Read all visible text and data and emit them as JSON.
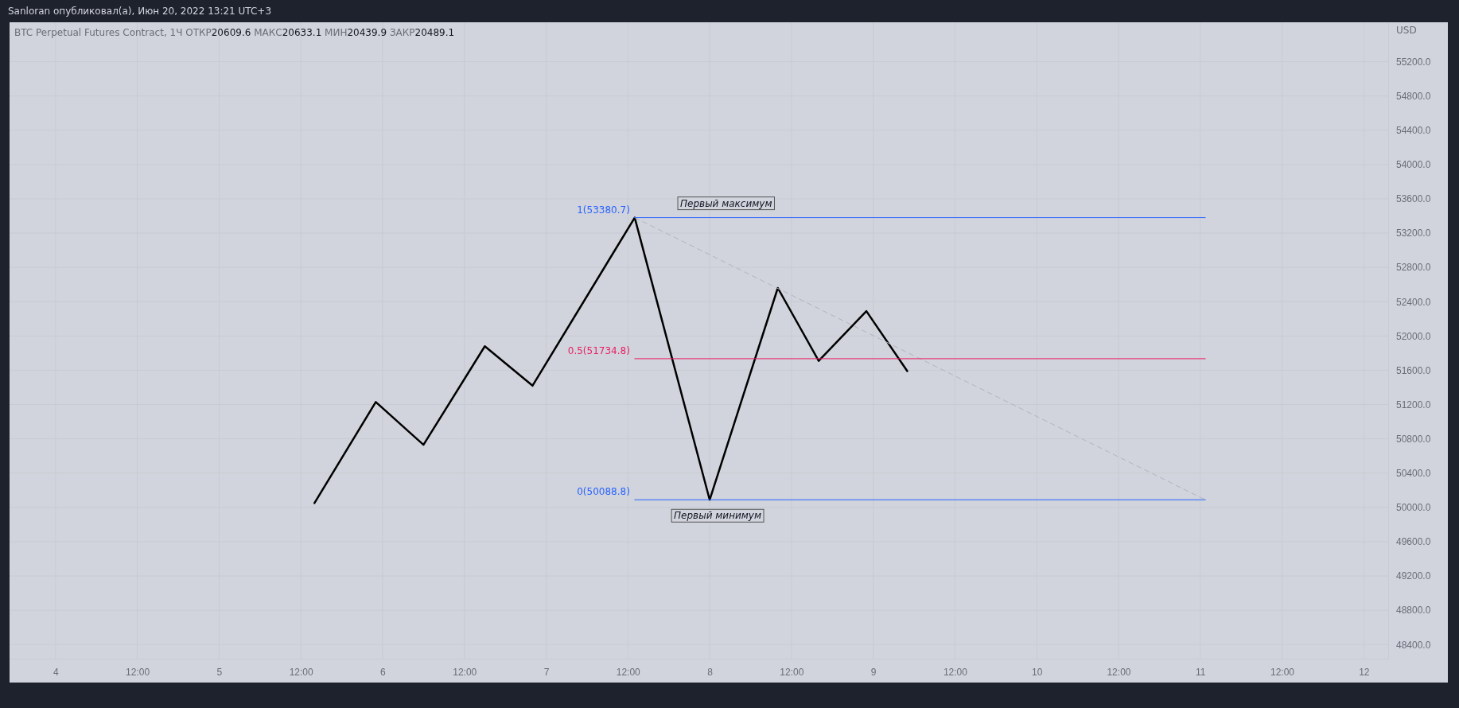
{
  "chart_data": {
    "type": "line",
    "title": "Sanloran опубликовал(а), Июн 20, 2022 13:21 UTC+3",
    "subtitle": "BTC Perpetual Futures Contract, 1Ч",
    "ylabel": "USD",
    "annotations": [
      "ОТКР20609.6",
      "МАКС20633.1",
      "МИН20439.9",
      "ЗАКР20489.1",
      {
        "text": "Первый максимум",
        "x": "--06-08T02:25",
        "y": 53380.7
      },
      {
        "text": "Первый минимум",
        "x": "--06-08T01:10",
        "y": 50088.8
      }
    ],
    "series": [
      {
        "color": "#000000",
        "x": [
          "--06-05T14:00",
          "--06-05T23:00",
          "--06-06T06:00",
          "--06-06T15:00",
          "--06-06T22:00",
          "--06-07T13:00",
          "--06-08T00:00",
          "--06-08T10:00",
          "--06-08T16:00",
          "--06-08T23:00",
          "--06-09T05:00"
        ],
        "values": [
          50050,
          51230,
          50730,
          51880,
          51420,
          53380.7,
          50088.8,
          52560,
          51710,
          52290,
          51590
        ]
      },
      {
        "type": "line",
        "color": "#b2b5be",
        "line_style": "dashed",
        "x": [
          "--06-07T13:00",
          "--06-11T00:45"
        ],
        "values": [
          53380.7,
          50088.8
        ]
      },
      {
        "name": "1(53380.7)",
        "color": "#2962ff",
        "x": [
          "--06-07T13:00",
          "--06-11T00:45"
        ],
        "values": [
          53380.7,
          53380.7
        ]
      },
      {
        "name": "0.5(51734.8)",
        "color": "#e91e63",
        "x": [
          "--06-07T13:00",
          "--06-11T00:45"
        ],
        "values": [
          51734.8,
          51734.8
        ]
      },
      {
        "name": "0(50088.8)",
        "color": "#2962ff",
        "x": [
          "--06-07T13:00",
          "--06-11T00:45"
        ],
        "values": [
          50088.8,
          50088.8
        ]
      }
    ],
    "xlim": [
      "--06-03T17:15",
      "--06-12T03:35"
    ],
    "ylim": [
      48235,
      55660
    ],
    "xticks": [
      {
        "value": "--06-04",
        "label": "4"
      },
      {
        "value": "--06-04T12:00",
        "label": "12:00"
      },
      {
        "value": "--06-05",
        "label": "5"
      },
      {
        "value": "--06-05T12:00",
        "label": "12:00"
      },
      {
        "value": "--06-06",
        "label": "6"
      },
      {
        "value": "--06-06T12:00",
        "label": "12:00"
      },
      {
        "value": "--06-07",
        "label": "7"
      },
      {
        "value": "--06-07T12:00",
        "label": "12:00"
      },
      {
        "value": "--06-08",
        "label": "8"
      },
      {
        "value": "--06-08T12:00",
        "label": "12:00"
      },
      {
        "value": "--06-09",
        "label": "9"
      },
      {
        "value": "--06-09T12:00",
        "label": "12:00"
      },
      {
        "value": "--06-10",
        "label": "10"
      },
      {
        "value": "--06-10T12:00",
        "label": "12:00"
      },
      {
        "value": "--06-11",
        "label": "11"
      },
      {
        "value": "--06-11T12:00",
        "label": "12:00"
      },
      {
        "value": "--06-12",
        "label": "12"
      }
    ],
    "yticks": [
      {
        "value": 48400,
        "label": "48400.0"
      },
      {
        "value": 48800,
        "label": "48800.0"
      },
      {
        "value": 49200,
        "label": "49200.0"
      },
      {
        "value": 49600,
        "label": "49600.0"
      },
      {
        "value": 50000,
        "label": "50000.0"
      },
      {
        "value": 50400,
        "label": "50400.0"
      },
      {
        "value": 50800,
        "label": "50800.0"
      },
      {
        "value": 51200,
        "label": "51200.0"
      },
      {
        "value": 51600,
        "label": "51600.0"
      },
      {
        "value": 52000,
        "label": "52000.0"
      },
      {
        "value": 52400,
        "label": "52400.0"
      },
      {
        "value": 52800,
        "label": "52800.0"
      },
      {
        "value": 53200,
        "label": "53200.0"
      },
      {
        "value": 53600,
        "label": "53600.0"
      },
      {
        "value": 54000,
        "label": "54000.0"
      },
      {
        "value": 54400,
        "label": "54400.0"
      },
      {
        "value": 54800,
        "label": "54800.0"
      },
      {
        "value": 55200,
        "label": "55200.0"
      }
    ],
    "grid": true,
    "marker": "none",
    "line_style": "solid"
  }
}
